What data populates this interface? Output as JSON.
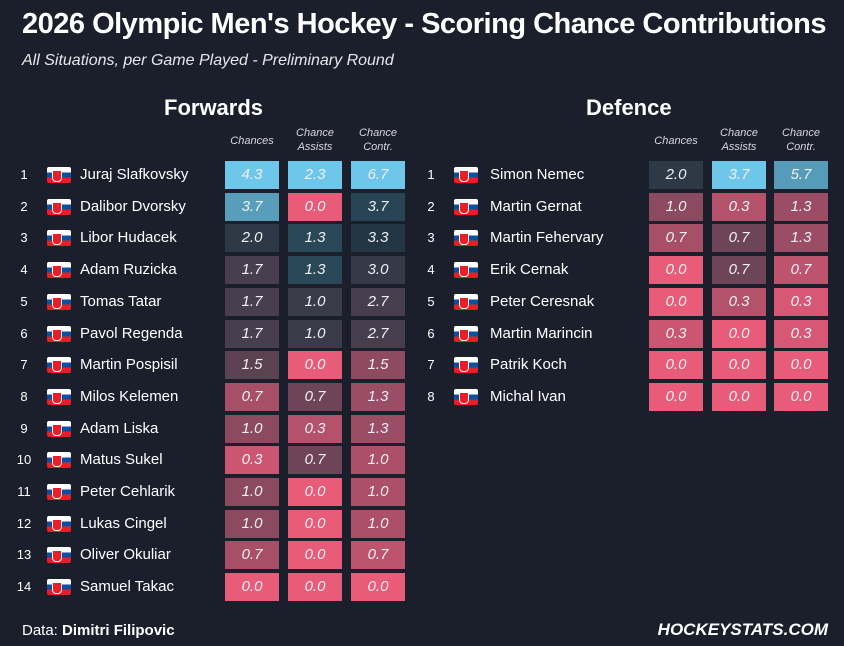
{
  "title": "2026 Olympic Men's Hockey - Scoring Chance Contributions",
  "subtitle": "All Situations, per Game Played - Preliminary Round",
  "footer": {
    "data_label": "Data:",
    "data_author": "Dimitri Filipovic",
    "brand": "HOCKEYSTATS.COM"
  },
  "colors": {
    "background": "#1b1f2b",
    "scale_low": "#e85b79",
    "scale_mid": "#1f3642",
    "scale_high": "#6ec6ea"
  },
  "chart_data": [
    {
      "type": "table",
      "title": "Forwards",
      "columns": [
        "Chances",
        "Chance Assists",
        "Chance Contr."
      ],
      "column_labels": [
        [
          "Chances"
        ],
        [
          "Chance",
          "Assists"
        ],
        [
          "Chance",
          "Contr."
        ]
      ],
      "column_ranges": [
        [
          0,
          4.3
        ],
        [
          0,
          2.3
        ],
        [
          0,
          6.7
        ]
      ],
      "rows": [
        {
          "rank": "1",
          "player": "Juraj Slafkovsky",
          "values": [
            "4.3",
            "2.3",
            "6.7"
          ]
        },
        {
          "rank": "2",
          "player": "Dalibor Dvorsky",
          "values": [
            "3.7",
            "0.0",
            "3.7"
          ]
        },
        {
          "rank": "3",
          "player": "Libor Hudacek",
          "values": [
            "2.0",
            "1.3",
            "3.3"
          ]
        },
        {
          "rank": "4",
          "player": "Adam Ruzicka",
          "values": [
            "1.7",
            "1.3",
            "3.0"
          ]
        },
        {
          "rank": "5",
          "player": "Tomas Tatar",
          "values": [
            "1.7",
            "1.0",
            "2.7"
          ]
        },
        {
          "rank": "6",
          "player": "Pavol Regenda",
          "values": [
            "1.7",
            "1.0",
            "2.7"
          ]
        },
        {
          "rank": "7",
          "player": "Martin Pospisil",
          "values": [
            "1.5",
            "0.0",
            "1.5"
          ]
        },
        {
          "rank": "8",
          "player": "Milos Kelemen",
          "values": [
            "0.7",
            "0.7",
            "1.3"
          ]
        },
        {
          "rank": "9",
          "player": "Adam Liska",
          "values": [
            "1.0",
            "0.3",
            "1.3"
          ]
        },
        {
          "rank": "10",
          "player": "Matus Sukel",
          "values": [
            "0.3",
            "0.7",
            "1.0"
          ]
        },
        {
          "rank": "11",
          "player": "Peter Cehlarik",
          "values": [
            "1.0",
            "0.0",
            "1.0"
          ]
        },
        {
          "rank": "12",
          "player": "Lukas Cingel",
          "values": [
            "1.0",
            "0.0",
            "1.0"
          ]
        },
        {
          "rank": "13",
          "player": "Oliver Okuliar",
          "values": [
            "0.7",
            "0.0",
            "0.7"
          ]
        },
        {
          "rank": "14",
          "player": "Samuel Takac",
          "values": [
            "0.0",
            "0.0",
            "0.0"
          ]
        }
      ]
    },
    {
      "type": "table",
      "title": "Defence",
      "columns": [
        "Chances",
        "Chance Assists",
        "Chance Contr."
      ],
      "column_labels": [
        [
          "Chances"
        ],
        [
          "Chance",
          "Assists"
        ],
        [
          "Chance",
          "Contr."
        ]
      ],
      "column_ranges": [
        [
          0,
          4.3
        ],
        [
          0,
          2.3
        ],
        [
          0,
          6.7
        ]
      ],
      "rows": [
        {
          "rank": "1",
          "player": "Simon Nemec",
          "values": [
            "2.0",
            "3.7",
            "5.7"
          ]
        },
        {
          "rank": "2",
          "player": "Martin Gernat",
          "values": [
            "1.0",
            "0.3",
            "1.3"
          ]
        },
        {
          "rank": "3",
          "player": "Martin Fehervary",
          "values": [
            "0.7",
            "0.7",
            "1.3"
          ]
        },
        {
          "rank": "4",
          "player": "Erik Cernak",
          "values": [
            "0.0",
            "0.7",
            "0.7"
          ]
        },
        {
          "rank": "5",
          "player": "Peter Ceresnak",
          "values": [
            "0.0",
            "0.3",
            "0.3"
          ]
        },
        {
          "rank": "6",
          "player": "Martin Marincin",
          "values": [
            "0.3",
            "0.0",
            "0.3"
          ]
        },
        {
          "rank": "7",
          "player": "Patrik Koch",
          "values": [
            "0.0",
            "0.0",
            "0.0"
          ]
        },
        {
          "rank": "8",
          "player": "Michal Ivan",
          "values": [
            "0.0",
            "0.0",
            "0.0"
          ]
        }
      ]
    }
  ]
}
